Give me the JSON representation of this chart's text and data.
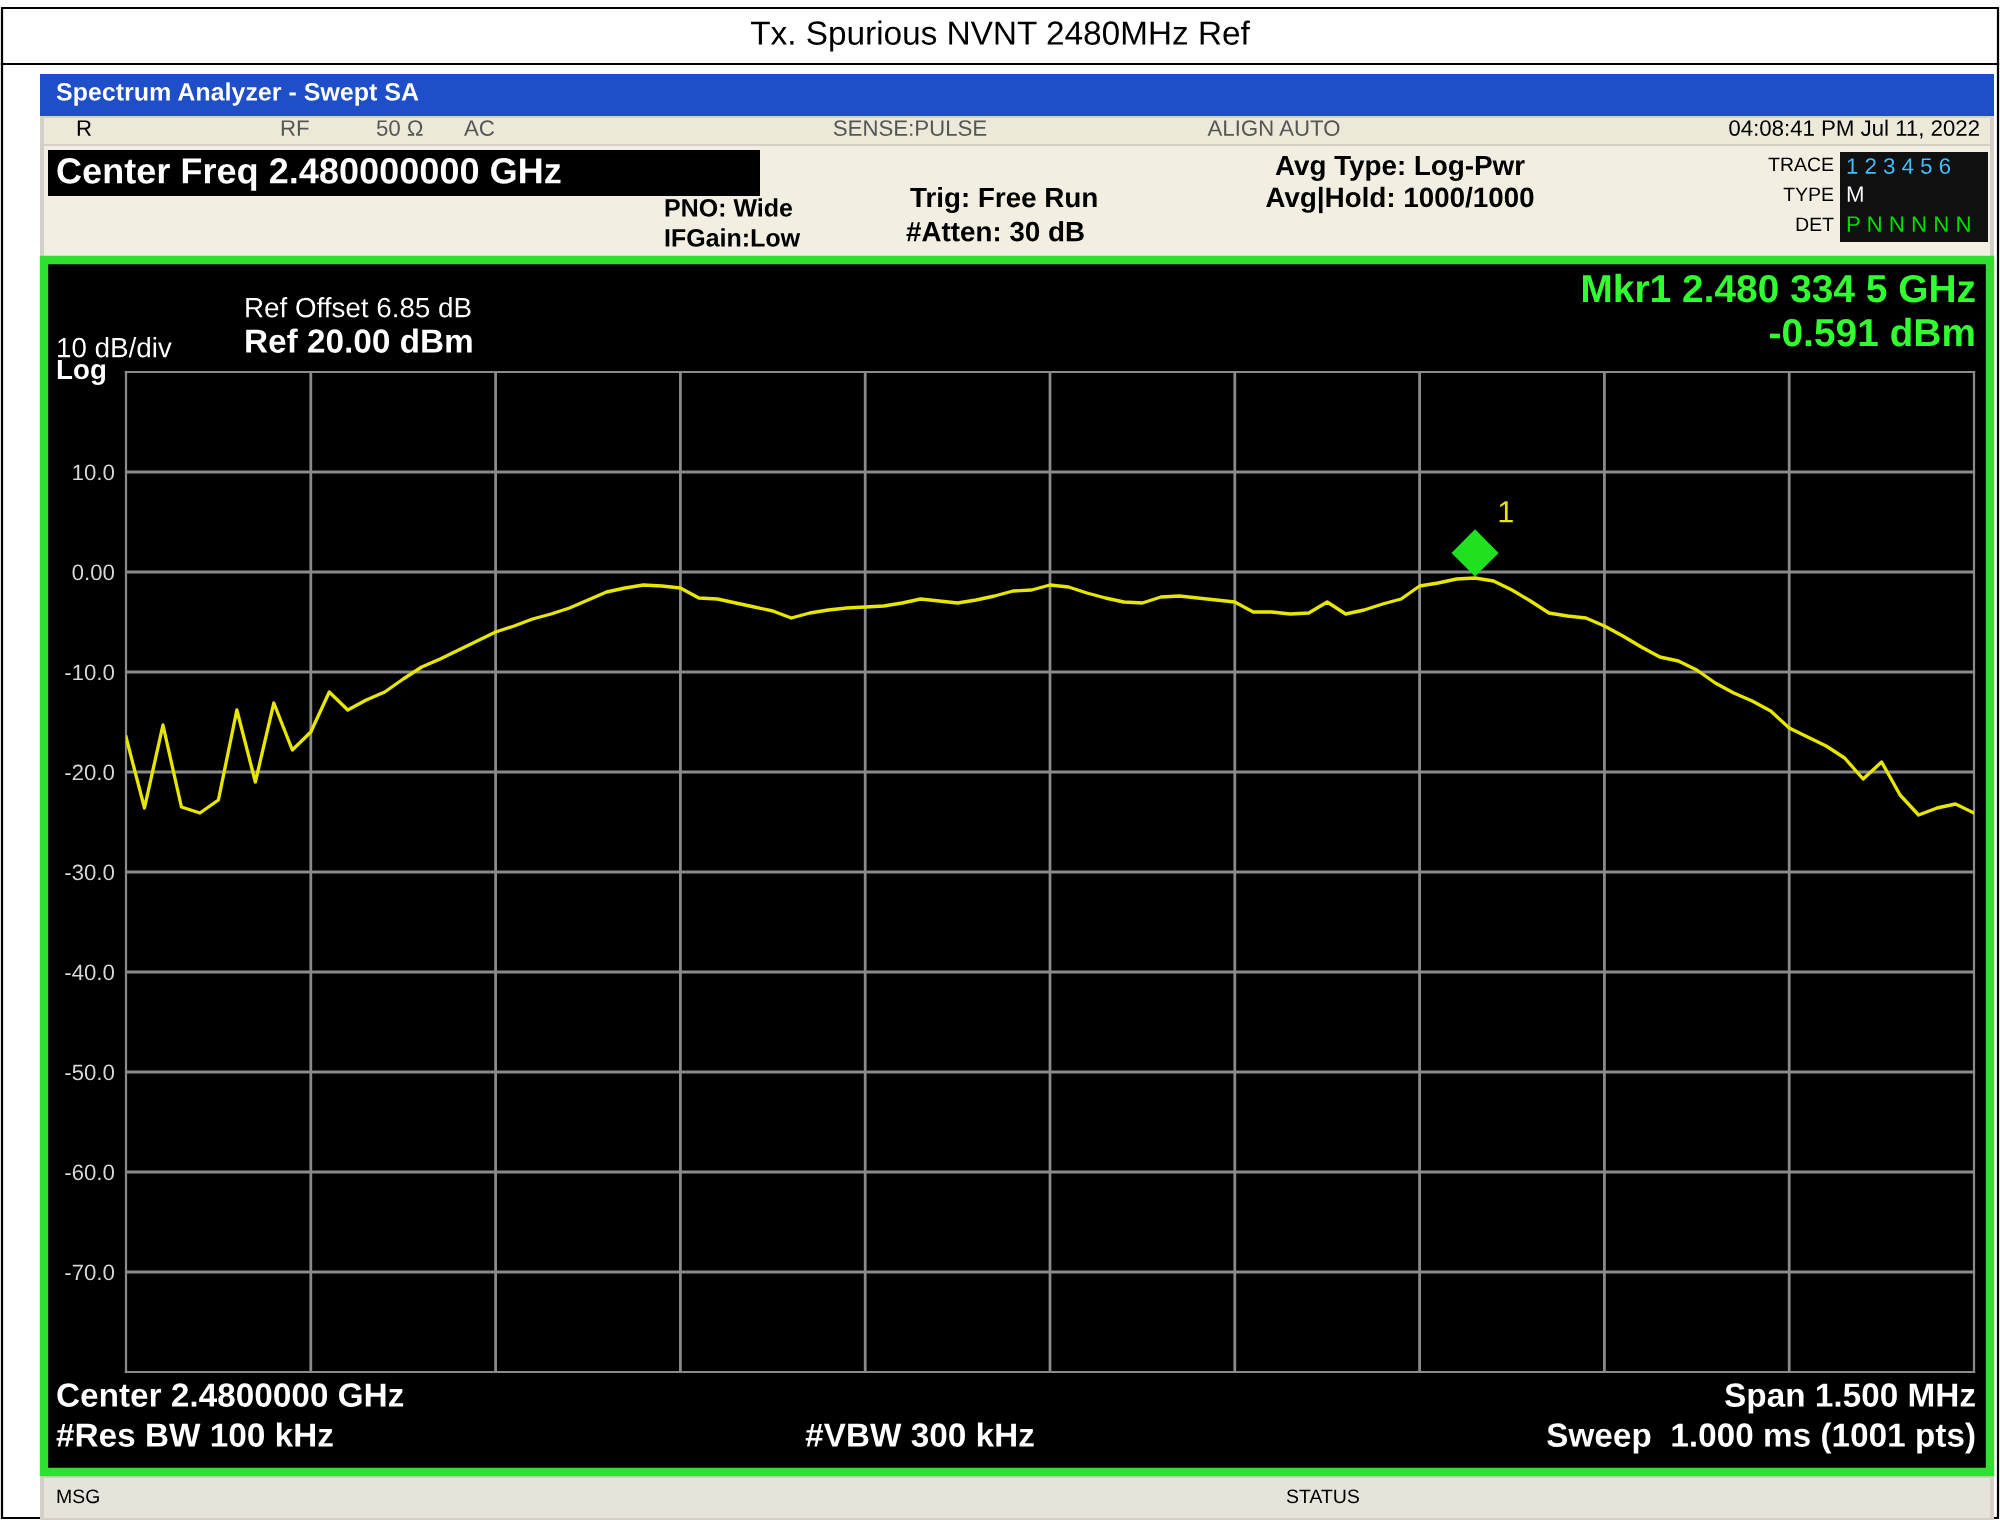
{
  "chart_data": {
    "type": "line",
    "title": "Tx. Spurious NVNT 2480MHz Ref",
    "categories": [
      null,
      null,
      null,
      null,
      null,
      null,
      null,
      null,
      null,
      null,
      null,
      null,
      null,
      null,
      null,
      null,
      null,
      null,
      null,
      null,
      null,
      null,
      null,
      null,
      null,
      null,
      null,
      null,
      null,
      null,
      null,
      null,
      null,
      null,
      null,
      null,
      null,
      null,
      null,
      null,
      null,
      null,
      null,
      null,
      null,
      null,
      null,
      null,
      null,
      null,
      null,
      null,
      null,
      null,
      null,
      null,
      null,
      null,
      null,
      null,
      null,
      null,
      null,
      null,
      null,
      null,
      null,
      null,
      null,
      null,
      null,
      null,
      null,
      null,
      null,
      null,
      null,
      null,
      null,
      null,
      null,
      null,
      null,
      null,
      null,
      null,
      null,
      null,
      null,
      null,
      null,
      null,
      null,
      null,
      null,
      null,
      null,
      null,
      null,
      null,
      null
    ],
    "series": [
      {
        "color": "#e6e600",
        "values": [
          -16.5,
          -23.6,
          -15.3,
          -23.5,
          -24.1,
          -22.8,
          -13.8,
          -21.0,
          -13.1,
          -17.8,
          -16.0,
          -12.0,
          -13.8,
          -12.8,
          -12.0,
          -10.7,
          -9.5,
          -8.7,
          -7.8,
          -6.9,
          -6.0,
          -5.4,
          -4.7,
          -4.2,
          -3.6,
          -2.8,
          -2.0,
          -1.6,
          -1.3,
          -1.4,
          -1.6,
          -2.6,
          -2.7,
          -3.1,
          -3.5,
          -3.9,
          -4.6,
          -4.1,
          -3.8,
          -3.6,
          -3.5,
          -3.4,
          -3.1,
          -2.7,
          -2.9,
          -3.1,
          -2.8,
          -2.4,
          -1.9,
          -1.8,
          -1.3,
          -1.5,
          -2.1,
          -2.6,
          -3.0,
          -3.1,
          -2.5,
          -2.4,
          -2.6,
          -2.8,
          -3.0,
          -4.0,
          -4.0,
          -4.2,
          -4.1,
          -3.0,
          -4.2,
          -3.8,
          -3.2,
          -2.7,
          -1.4,
          -1.1,
          -0.7,
          -0.6,
          -0.9,
          -1.8,
          -2.9,
          -4.1,
          -4.4,
          -4.6,
          -5.4,
          -6.4,
          -7.5,
          -8.5,
          -8.9,
          -9.8,
          -11.1,
          -12.1,
          -12.9,
          -13.9,
          -15.6,
          -16.5,
          -17.4,
          -18.6,
          -20.7,
          -19.0,
          -22.3,
          -24.3,
          -23.6,
          -23.2,
          -24.1
        ]
      }
    ],
    "ylim": [
      -80,
      20
    ],
    "yticks": [
      {
        "value": 10,
        "label": "10.0"
      },
      {
        "value": 0,
        "label": "0.00"
      },
      {
        "value": -10,
        "label": "-10.0"
      },
      {
        "value": -20,
        "label": "-20.0"
      },
      {
        "value": -30,
        "label": "-30.0"
      },
      {
        "value": -40,
        "label": "-40.0"
      },
      {
        "value": -50,
        "label": "-50.0"
      },
      {
        "value": -60,
        "label": "-60.0"
      },
      {
        "value": -70,
        "label": "-70.0"
      }
    ],
    "grid": true,
    "tick_labels": "y",
    "annotations": [
      "Spectrum Analyzer - Swept SA",
      "R",
      "RF",
      "50 Ω",
      "AC",
      "SENSE:PULSE",
      "ALIGN AUTO",
      "04:08:41 PM Jul 11, 2022",
      "Center Freq 2.480000000 GHz",
      "PNO: Wide",
      "IFGain:Low",
      "Trig: Free Run",
      "#Atten: 30 dB",
      "Avg Type: Log-Pwr",
      "Avg|Hold: 1000/1000",
      "TRACE",
      "TYPE",
      "DET",
      "1 2 3 4 5 6",
      "M",
      "P N N N N N",
      "Ref Offset 6.85 dB",
      "10 dB/div",
      "Log",
      "Ref 20.00 dBm",
      "Mkr1 2.480 334 5 GHz",
      "-0.591 dBm",
      "Center 2.4800000 GHz",
      "#Res BW 100 kHz",
      "#VBW 300 kHz",
      "Span 1.500 MHz",
      "Sweep  1.000 ms (1001 pts)",
      "MSG",
      "STATUS",
      {
        "text": "1",
        "y": -0.591
      }
    ]
  }
}
